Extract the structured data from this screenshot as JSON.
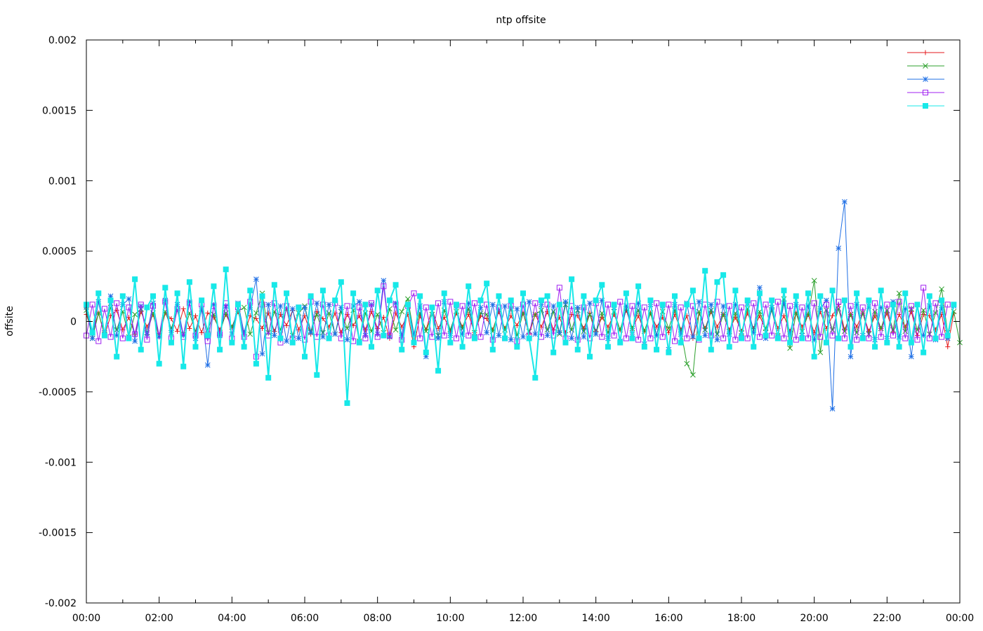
{
  "chart_data": {
    "type": "line",
    "title": "ntp offsite",
    "xlabel": "",
    "ylabel": "offsite",
    "x_range": [
      "00:00",
      "24:00"
    ],
    "ylim": [
      -0.002,
      0.002
    ],
    "x_ticks": [
      "00:00",
      "02:00",
      "04:00",
      "06:00",
      "08:00",
      "10:00",
      "12:00",
      "14:00",
      "16:00",
      "18:00",
      "20:00",
      "22:00",
      "00:00"
    ],
    "y_ticks": [
      "0.002",
      "0.0015",
      "0.001",
      "0.0005",
      "0",
      "-0.0005",
      "-0.001",
      "-0.0015",
      "-0.002"
    ],
    "grid": false,
    "legend_position": "top-right",
    "sample_interval_minutes": 10,
    "series": [
      {
        "color": "#e41a1c",
        "marker": "+",
        "values": [
          5e-05,
          -8e-05,
          6e-05,
          -0.0001,
          4e-05,
          8e-05,
          -6e-05,
          3e-05,
          -9e-05,
          7e-05,
          -4e-05,
          5e-05,
          -0.00011,
          6e-05,
          2e-05,
          -7e-05,
          9e-05,
          -5e-05,
          4e-05,
          -8e-05,
          6e-05,
          3e-05,
          -6e-05,
          5e-05,
          -4e-05,
          7e-05,
          -9e-05,
          4e-05,
          2e-05,
          -5e-05,
          6e-05,
          -7e-05,
          5e-05,
          -3e-05,
          8e-05,
          -6e-05,
          4e-05,
          -9e-05,
          7e-05,
          2e-05,
          -4e-05,
          6e-05,
          -8e-05,
          5e-05,
          -3e-05,
          4e-05,
          -6e-05,
          7e-05,
          -5e-05,
          3e-05,
          -0.00012,
          6e-05,
          -4e-05,
          5e-05,
          -0.00018,
          4e-05,
          -6e-05,
          9e-05,
          -5e-05,
          3e-05,
          -7e-05,
          6e-05,
          -4e-05,
          5e-05,
          -8e-05,
          4e-05,
          2e-05,
          -6e-05,
          7e-05,
          -5e-05,
          4e-05,
          -3e-05,
          6e-05,
          -9e-05,
          5e-05,
          -4e-05,
          7e-05,
          -6e-05,
          3e-05,
          -8e-05,
          5e-05,
          4e-05,
          -5e-05,
          6e-05,
          -7e-05,
          3e-05,
          -4e-05,
          5e-05,
          -6e-05,
          8e-05,
          -5e-05,
          4e-05,
          -7e-05,
          6e-05,
          -4e-05,
          3e-05,
          -8e-05,
          5e-05,
          -6e-05,
          4e-05,
          -0.00012,
          6e-05,
          -5e-05,
          7e-05,
          -4e-05,
          5e-05,
          -6e-05,
          3e-05,
          -7e-05,
          6e-05,
          -5e-05,
          4e-05,
          -6e-05,
          9e-05,
          -5e-05,
          4e-05,
          -7e-05,
          6e-05,
          -4e-05,
          5e-05,
          -8e-05,
          7e-05,
          -5e-05,
          4e-05,
          0.00012,
          -6e-05,
          5e-05,
          -4e-05,
          6e-05,
          -7e-05,
          4e-05,
          -5e-05,
          6e-05,
          -8e-05,
          5e-05,
          -4e-05,
          7e-05,
          -0.0001,
          5e-05,
          4e-05,
          -6e-05,
          5e-05,
          -0.00018,
          6e-05
        ]
      },
      {
        "color": "#2ca02c",
        "marker": "x",
        "values": [
          8e-05,
          -0.00012,
          6e-05,
          -9e-05,
          0.0001,
          -6e-05,
          7e-05,
          -0.00011,
          5e-05,
          9e-05,
          -8e-05,
          6e-05,
          -0.0001,
          7e-05,
          -5e-05,
          8e-05,
          -9e-05,
          6e-05,
          -7e-05,
          9e-05,
          -6e-05,
          5e-05,
          -8e-05,
          6e-05,
          -4e-05,
          7e-05,
          0.0001,
          -9e-05,
          6e-05,
          0.0002,
          -8e-05,
          7e-05,
          -6e-05,
          9e-05,
          -0.0001,
          6e-05,
          0.00011,
          -7e-05,
          5e-05,
          -8e-05,
          6e-05,
          -9e-05,
          7e-05,
          -5e-05,
          8e-05,
          -0.00014,
          6e-05,
          -7e-05,
          5e-05,
          -8e-05,
          9e-05,
          -6e-05,
          7e-05,
          0.00016,
          -9e-05,
          6e-05,
          -7e-05,
          5e-05,
          -0.0001,
          8e-05,
          -6e-05,
          7e-05,
          -5e-05,
          9e-05,
          -8e-05,
          6e-05,
          5e-05,
          -7e-05,
          8e-05,
          -6e-05,
          9e-05,
          -0.0001,
          6e-05,
          -7e-05,
          5e-05,
          8e-05,
          -6e-05,
          7e-05,
          -9e-05,
          0.00012,
          -6e-05,
          8e-05,
          -7e-05,
          5e-05,
          -9e-05,
          6e-05,
          -8e-05,
          7e-05,
          -6e-05,
          9e-05,
          -5e-05,
          8e-05,
          -7e-05,
          6e-05,
          -0.0001,
          7e-05,
          -5e-05,
          8e-05,
          -6e-05,
          -0.0003,
          -0.00038,
          7e-05,
          -6e-05,
          8e-05,
          -9e-05,
          5e-05,
          -7e-05,
          6e-05,
          -8e-05,
          9e-05,
          -6e-05,
          7e-05,
          -5e-05,
          8e-05,
          -0.0001,
          0.00016,
          -0.00019,
          6e-05,
          -7e-05,
          5e-05,
          0.00029,
          -0.00022,
          8e-05,
          -6e-05,
          9e-05,
          -7e-05,
          5e-05,
          -8e-05,
          6e-05,
          -9e-05,
          7e-05,
          -5e-05,
          8e-05,
          -6e-05,
          0.0002,
          -7e-05,
          9e-05,
          -6e-05,
          8e-05,
          -9e-05,
          6e-05,
          0.00023,
          -8e-05,
          7e-05,
          -0.00015
        ]
      },
      {
        "color": "#1f6fe5",
        "marker": "*",
        "values": [
          0.0001,
          -0.00012,
          0.00014,
          -8e-05,
          0.00018,
          -0.0001,
          0.00012,
          0.00016,
          -0.00014,
          0.00011,
          -9e-05,
          0.00013,
          -0.00011,
          0.00015,
          -8e-05,
          0.00012,
          -0.0001,
          0.00014,
          -0.00012,
          9e-05,
          -0.00031,
          0.00012,
          -0.0001,
          0.00011,
          -9e-05,
          0.00013,
          -8e-05,
          0.0001,
          0.0003,
          -0.00023,
          0.00012,
          -0.0001,
          0.00011,
          -0.00014,
          9e-05,
          -0.00012,
          0.0001,
          -8e-05,
          0.00013,
          -0.00011,
          0.00012,
          -9e-05,
          0.0001,
          -0.00013,
          0.00011,
          0.00014,
          -0.0001,
          0.00012,
          -9e-05,
          0.00029,
          -0.00011,
          0.00013,
          -0.0001,
          0.00012,
          -9e-05,
          0.00011,
          -0.00025,
          0.0001,
          -0.00012,
          0.00014,
          -0.0001,
          0.00011,
          -9e-05,
          0.00013,
          -0.00011,
          0.0001,
          -8e-05,
          0.00012,
          -0.0001,
          0.00011,
          -0.00013,
          9e-05,
          -0.00011,
          0.00014,
          -9e-05,
          0.00012,
          -0.0001,
          0.00011,
          -8e-05,
          0.00014,
          -0.00012,
          0.0001,
          -0.00011,
          0.00013,
          -9e-05,
          0.00015,
          -0.00012,
          0.0001,
          -0.00014,
          0.00011,
          -9e-05,
          0.00013,
          -0.00016,
          0.00012,
          -0.0001,
          0.00011,
          -0.0002,
          0.00012,
          -9e-05,
          0.00013,
          -0.00011,
          0.00014,
          -0.0001,
          0.00012,
          -0.00013,
          0.00011,
          -9e-05,
          0.00012,
          -0.0001,
          0.00013,
          -8e-05,
          0.00024,
          -0.00012,
          0.0001,
          -0.00011,
          0.00013,
          -9e-05,
          0.00012,
          -0.0001,
          0.00011,
          -0.00013,
          9e-05,
          0.00015,
          -0.00062,
          0.00052,
          0.00085,
          -0.00025,
          0.00012,
          -0.0001,
          0.00011,
          -0.00013,
          0.0001,
          -0.00012,
          0.00014,
          -0.00011,
          9e-05,
          -0.00025,
          0.00012,
          -0.0001,
          0.00011,
          -0.00013,
          0.0001,
          -0.00012,
          0.00011
        ]
      },
      {
        "color": "#a020f0",
        "marker": "square-open",
        "values": [
          -0.0001,
          0.00012,
          -0.00014,
          9e-05,
          -0.00011,
          0.00013,
          -0.00012,
          0.0001,
          -9e-05,
          0.00012,
          -0.00013,
          0.00011,
          -0.0001,
          0.00014,
          -0.00012,
          9e-05,
          -0.00011,
          0.00013,
          -0.0001,
          0.00012,
          -0.00014,
          0.00011,
          -9e-05,
          0.00013,
          -0.00012,
          0.0001,
          -0.00011,
          0.00014,
          -0.00025,
          0.00012,
          -0.0001,
          0.00013,
          -0.00015,
          0.00011,
          -0.00012,
          0.0001,
          -0.00013,
          0.00014,
          -0.00011,
          0.00012,
          -0.0001,
          0.00013,
          -0.00012,
          0.00011,
          -0.00014,
          0.0001,
          -0.00012,
          0.00013,
          -0.00011,
          0.00025,
          -0.0001,
          0.00012,
          -0.00013,
          0.00011,
          0.0002,
          -0.00012,
          0.0001,
          -0.00011,
          0.00013,
          -0.0001,
          0.00014,
          -0.00012,
          0.00011,
          -0.0001,
          0.00013,
          -0.00011,
          0.00012,
          -0.00013,
          0.0001,
          -0.00012,
          0.00011,
          -0.00014,
          0.00012,
          -0.0001,
          0.00013,
          -0.00011,
          0.00012,
          -0.0001,
          0.00024,
          -0.00012,
          0.00011,
          -0.00013,
          0.0001,
          -0.00012,
          0.00013,
          -0.00011,
          0.00012,
          -0.0001,
          0.00014,
          -0.00012,
          0.00011,
          -0.00013,
          0.0001,
          -0.00012,
          0.00013,
          -0.00011,
          0.00012,
          -0.00014,
          0.0001,
          -0.00012,
          0.00011,
          -0.00013,
          0.00012,
          -0.0001,
          0.00014,
          -0.00012,
          0.00011,
          -0.00013,
          0.0001,
          -0.00012,
          0.00013,
          -0.00011,
          0.00012,
          -0.0001,
          0.00014,
          -0.00012,
          0.00011,
          -0.00013,
          0.0001,
          -0.00012,
          0.00013,
          -0.00011,
          0.00012,
          -0.0001,
          0.00014,
          -0.00012,
          0.00011,
          -0.00013,
          0.0001,
          -0.00012,
          0.00013,
          -0.00011,
          0.00012,
          -0.0001,
          0.00014,
          -0.00012,
          0.00011,
          -0.00013,
          0.00024,
          -0.00012,
          0.00013,
          -0.00011,
          0.00012
        ]
      },
      {
        "color": "#17e8e8",
        "marker": "square-filled",
        "values": [
          0.00012,
          -8e-05,
          0.0002,
          -0.0001,
          0.00015,
          -0.00025,
          0.00018,
          -0.00012,
          0.0003,
          -0.0002,
          0.0001,
          0.00018,
          -0.0003,
          0.00024,
          -0.00015,
          0.0002,
          -0.00032,
          0.00028,
          -0.00018,
          0.00015,
          -0.0001,
          0.00025,
          -0.0002,
          0.00037,
          -0.00015,
          0.00012,
          -0.00018,
          0.00022,
          -0.0003,
          0.00018,
          -0.0004,
          0.00026,
          -0.00012,
          0.0002,
          -0.00015,
          0.0001,
          -0.00025,
          0.00018,
          -0.00038,
          0.00022,
          -0.00012,
          0.00015,
          0.00028,
          -0.00058,
          0.0002,
          -0.00015,
          0.00012,
          -0.00018,
          0.00022,
          -0.0001,
          0.00015,
          0.00026,
          -0.0002,
          0.00012,
          -0.00015,
          0.00018,
          -0.00022,
          0.0001,
          -0.00035,
          0.0002,
          -0.00015,
          0.00012,
          -0.00018,
          0.00025,
          -0.00012,
          0.00015,
          0.00027,
          -0.0002,
          0.00018,
          -0.00012,
          0.00015,
          -0.00018,
          0.0002,
          -0.00012,
          -0.0004,
          0.00015,
          0.00018,
          -0.00022,
          0.00012,
          -0.00015,
          0.0003,
          -0.0002,
          0.00018,
          -0.00025,
          0.00015,
          0.00026,
          -0.00018,
          0.00012,
          -0.00015,
          0.0002,
          -0.00012,
          0.00025,
          -0.00018,
          0.00015,
          -0.0002,
          0.00012,
          -0.00022,
          0.00018,
          -0.00015,
          0.00012,
          0.00022,
          -0.00012,
          0.00036,
          -0.0002,
          0.00028,
          0.00033,
          -0.00018,
          0.00022,
          -0.00012,
          0.00015,
          -0.00018,
          0.0002,
          -0.0001,
          0.00015,
          -0.00012,
          0.00022,
          -0.00015,
          0.00018,
          -0.00012,
          0.0002,
          -0.00025,
          0.00018,
          -0.00015,
          0.00022,
          -0.00012,
          0.00015,
          -0.00018,
          0.0002,
          -0.00012,
          0.00015,
          -0.00018,
          0.00022,
          -0.00015,
          0.00012,
          -0.00018,
          0.0002,
          -0.00015,
          0.00012,
          -0.00022,
          0.00018,
          -0.00012,
          0.00015,
          -0.0001,
          0.00012
        ]
      }
    ]
  }
}
